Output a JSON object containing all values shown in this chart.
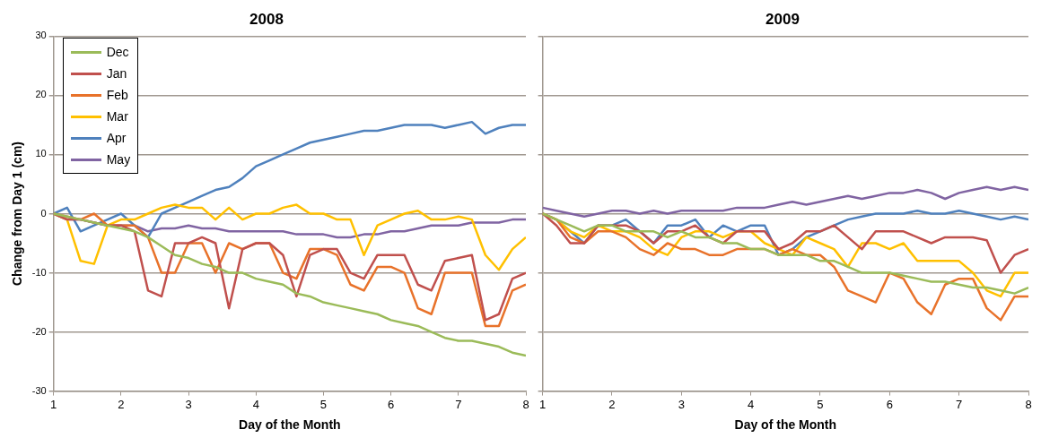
{
  "chart_data": [
    {
      "type": "line",
      "title": "2008",
      "xlabel": "Day of the Month",
      "ylabel": "Change from Day 1 (cm)",
      "xlim": [
        1,
        8
      ],
      "xticks": [
        1,
        2,
        3,
        4,
        5,
        6,
        7,
        8
      ],
      "ylim": [
        -30,
        30
      ],
      "yticks": [
        -30,
        -20,
        -10,
        0,
        10,
        20,
        30
      ],
      "grid": "y",
      "legend": "top left",
      "marker": "none",
      "line_style": "solid",
      "x": [
        1,
        1.2,
        1.4,
        1.6,
        1.8,
        2,
        2.2,
        2.4,
        2.6,
        2.8,
        3,
        3.2,
        3.4,
        3.6,
        3.8,
        4,
        4.2,
        4.4,
        4.6,
        4.8,
        5,
        5.2,
        5.4,
        5.6,
        5.8,
        6,
        6.2,
        6.4,
        6.6,
        6.8,
        7,
        7.2,
        7.4,
        7.6,
        7.8,
        8
      ],
      "series": [
        {
          "name": "Dec",
          "color": "#9bbb59",
          "values": [
            0,
            -0.5,
            -1,
            -1.5,
            -2,
            -2.5,
            -3,
            -4,
            -5.5,
            -7,
            -7.5,
            -8.5,
            -9,
            -10,
            -10,
            -11,
            -11.5,
            -12,
            -13.5,
            -14,
            -15,
            -15.5,
            -16,
            -16.5,
            -17,
            -18,
            -18.5,
            -19,
            -20,
            -21,
            -21.5,
            -21.5,
            -22,
            -22.5,
            -23.5,
            -24
          ]
        },
        {
          "name": "Jan",
          "color": "#c0504d",
          "values": [
            0,
            -1,
            -1,
            -1.5,
            -2,
            -2,
            -3,
            -13,
            -14,
            -5,
            -5,
            -4,
            -5,
            -16,
            -6,
            -5,
            -5,
            -7,
            -14,
            -7,
            -6,
            -6,
            -10,
            -11,
            -7,
            -7,
            -7,
            -12,
            -13,
            -8,
            -7.5,
            -7,
            -18,
            -17,
            -11,
            -10
          ]
        },
        {
          "name": "Feb",
          "color": "#e8722a",
          "values": [
            0,
            -0.5,
            -1,
            0,
            -2,
            -2,
            -2,
            -4,
            -10,
            -10,
            -5,
            -5,
            -10,
            -5,
            -6,
            -5,
            -5,
            -10,
            -11,
            -6,
            -6,
            -7,
            -12,
            -13,
            -9,
            -9,
            -10,
            -16,
            -17,
            -10,
            -10,
            -10,
            -19,
            -19,
            -13,
            -12
          ]
        },
        {
          "name": "Mar",
          "color": "#ffc000",
          "values": [
            0,
            -1,
            -8,
            -8.5,
            -2,
            -1,
            -1,
            0,
            1,
            1.5,
            1,
            1,
            -1,
            1,
            -1,
            0,
            0,
            1,
            1.5,
            0,
            0,
            -1,
            -1,
            -7,
            -2,
            -1,
            0,
            0.5,
            -1,
            -1,
            -0.5,
            -1,
            -7,
            -9.5,
            -6,
            -4
          ]
        },
        {
          "name": "Apr",
          "color": "#4f81bd",
          "values": [
            0,
            1,
            -3,
            -2,
            -1,
            0,
            -2,
            -4,
            0,
            1,
            2,
            3,
            4,
            4.5,
            6,
            8,
            9,
            10,
            11,
            12,
            12.5,
            13,
            13.5,
            14,
            14,
            14.5,
            15,
            15,
            15,
            14.5,
            15,
            15.5,
            13.5,
            14.5,
            15,
            15
          ]
        },
        {
          "name": "May",
          "color": "#8064a2",
          "values": [
            0,
            -1,
            -1,
            -1.5,
            -2,
            -2,
            -2,
            -3,
            -2.5,
            -2.5,
            -2,
            -2.5,
            -2.5,
            -3,
            -3,
            -3,
            -3,
            -3,
            -3.5,
            -3.5,
            -3.5,
            -4,
            -4,
            -3.5,
            -3.5,
            -3,
            -3,
            -2.5,
            -2,
            -2,
            -2,
            -1.5,
            -1.5,
            -1.5,
            -1,
            -1
          ]
        }
      ]
    },
    {
      "type": "line",
      "title": "2009",
      "xlabel": "Day of the Month",
      "xlim": [
        1,
        8
      ],
      "xticks": [
        1,
        2,
        3,
        4,
        5,
        6,
        7,
        8
      ],
      "ylim": [
        -30,
        30
      ],
      "yticks": [
        -30,
        -20,
        -10,
        0,
        10,
        20,
        30
      ],
      "grid": "y",
      "tick_labels": "x",
      "marker": "none",
      "line_style": "solid",
      "x": [
        1,
        1.2,
        1.4,
        1.6,
        1.8,
        2,
        2.2,
        2.4,
        2.6,
        2.8,
        3,
        3.2,
        3.4,
        3.6,
        3.8,
        4,
        4.2,
        4.4,
        4.6,
        4.8,
        5,
        5.2,
        5.4,
        5.6,
        5.8,
        6,
        6.2,
        6.4,
        6.6,
        6.8,
        7,
        7.2,
        7.4,
        7.6,
        7.8,
        8
      ],
      "series": [
        {
          "color": "#9bbb59",
          "values": [
            0,
            -1,
            -2,
            -3,
            -2,
            -2,
            -3,
            -3,
            -3,
            -4,
            -3,
            -4,
            -4,
            -5,
            -5,
            -6,
            -6,
            -7,
            -7,
            -7,
            -8,
            -8,
            -9,
            -10,
            -10,
            -10,
            -10.5,
            -11,
            -11.5,
            -11.5,
            -12,
            -12.5,
            -12.5,
            -13,
            -13.5,
            -12.5
          ]
        },
        {
          "color": "#c0504d",
          "values": [
            0,
            -2,
            -5,
            -5,
            -2,
            -2,
            -2,
            -3,
            -5,
            -3,
            -3,
            -2,
            -4,
            -5,
            -3,
            -3,
            -3,
            -6,
            -5,
            -3,
            -3,
            -2,
            -4,
            -6,
            -3,
            -3,
            -3,
            -4,
            -5,
            -4,
            -4,
            -4,
            -4.5,
            -10,
            -7,
            -6
          ]
        },
        {
          "color": "#e8722a",
          "values": [
            0,
            -1,
            -4,
            -5,
            -3,
            -3,
            -4,
            -6,
            -7,
            -5,
            -6,
            -6,
            -7,
            -7,
            -6,
            -6,
            -6,
            -7,
            -6,
            -7,
            -7,
            -9,
            -13,
            -14,
            -15,
            -10,
            -11,
            -15,
            -17,
            -12,
            -11,
            -11,
            -16,
            -18,
            -14,
            -14
          ]
        },
        {
          "color": "#ffc000",
          "values": [
            0,
            -1,
            -3,
            -4,
            -2,
            -3,
            -3,
            -4,
            -6,
            -7,
            -4,
            -3,
            -3,
            -4,
            -3,
            -3,
            -5,
            -6,
            -7,
            -4,
            -5,
            -6,
            -9,
            -5,
            -5,
            -6,
            -5,
            -8,
            -8,
            -8,
            -8,
            -10,
            -13,
            -14,
            -10,
            -10
          ]
        },
        {
          "color": "#4f81bd",
          "values": [
            0,
            -1,
            -3,
            -5,
            -2,
            -2,
            -1,
            -3,
            -5,
            -2,
            -2,
            -1,
            -4,
            -2,
            -3,
            -2,
            -2,
            -7,
            -6,
            -4,
            -3,
            -2,
            -1,
            -0.5,
            0,
            0,
            0,
            0.5,
            0,
            0,
            0.5,
            0,
            -0.5,
            -1,
            -0.5,
            -1
          ]
        },
        {
          "color": "#8064a2",
          "values": [
            1,
            0.5,
            0,
            -0.5,
            0,
            0.5,
            0.5,
            0,
            0.5,
            0,
            0.5,
            0.5,
            0.5,
            0.5,
            1,
            1,
            1,
            1.5,
            2,
            1.5,
            2,
            2.5,
            3,
            2.5,
            3,
            3.5,
            3.5,
            4,
            3.5,
            2.5,
            3.5,
            4,
            4.5,
            4,
            4.5,
            4
          ]
        }
      ]
    }
  ]
}
